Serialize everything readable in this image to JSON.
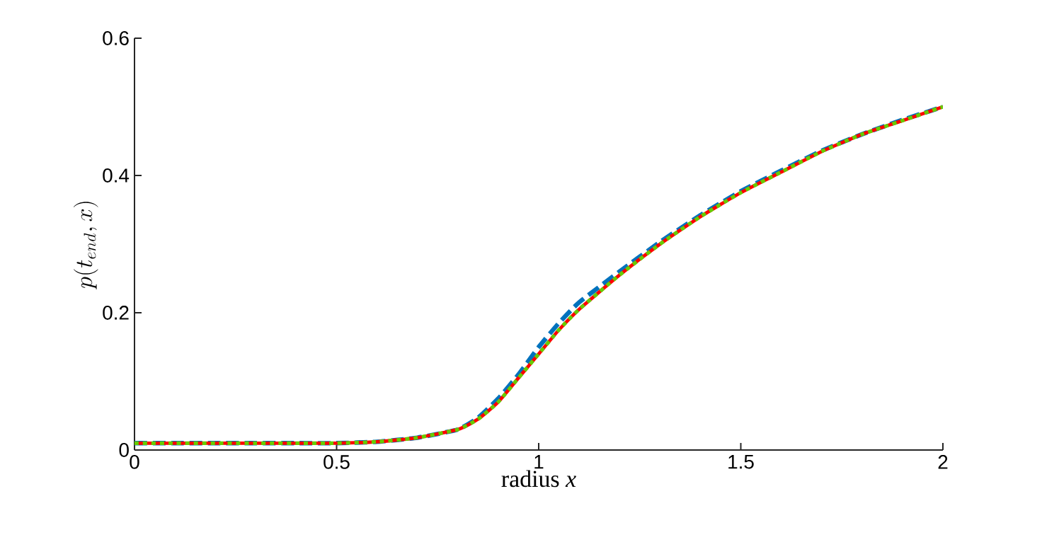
{
  "chart_data": {
    "type": "line",
    "xlabel": "radius *x*",
    "ylabel": "p(t_{end},x)",
    "x": [
      0,
      0.1,
      0.2,
      0.3,
      0.4,
      0.5,
      0.6,
      0.7,
      0.8,
      0.85,
      0.9,
      0.95,
      1.0,
      1.05,
      1.1,
      1.2,
      1.3,
      1.4,
      1.5,
      1.6,
      1.7,
      1.8,
      1.9,
      2.0
    ],
    "series": [
      {
        "color": "#0072bd",
        "line_style": "dashed",
        "values": [
          0.01,
          0.01,
          0.01,
          0.01,
          0.01,
          0.01,
          0.012,
          0.018,
          0.03,
          0.047,
          0.075,
          0.11,
          0.15,
          0.185,
          0.215,
          0.26,
          0.303,
          0.342,
          0.377,
          0.407,
          0.436,
          0.46,
          0.481,
          0.5
        ]
      },
      {
        "color": "#ff0000",
        "line_style": "solid",
        "values": [
          0.01,
          0.01,
          0.01,
          0.01,
          0.01,
          0.01,
          0.012,
          0.018,
          0.03,
          0.045,
          0.07,
          0.105,
          0.14,
          0.175,
          0.205,
          0.255,
          0.3,
          0.34,
          0.375,
          0.405,
          0.435,
          0.46,
          0.48,
          0.5
        ]
      },
      {
        "color": "#66cc00",
        "line_style": "dotted",
        "values": [
          0.01,
          0.01,
          0.01,
          0.01,
          0.01,
          0.01,
          0.012,
          0.018,
          0.03,
          0.045,
          0.07,
          0.105,
          0.14,
          0.175,
          0.205,
          0.255,
          0.3,
          0.34,
          0.375,
          0.405,
          0.435,
          0.46,
          0.48,
          0.5
        ]
      }
    ],
    "xlim": [
      0,
      2
    ],
    "ylim": [
      0,
      0.6
    ],
    "xticks": [
      0,
      0.5,
      1,
      1.5,
      2
    ],
    "yticks": [
      0,
      0.2,
      0.4,
      0.6
    ],
    "marker": "none"
  }
}
